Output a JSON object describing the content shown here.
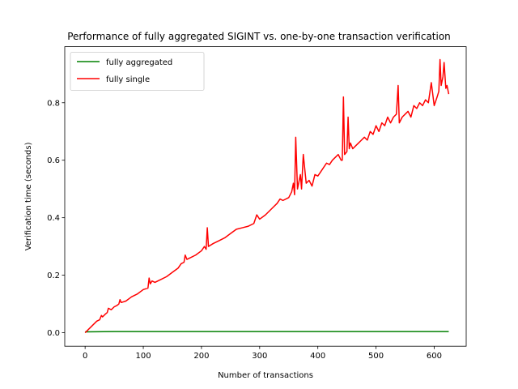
{
  "chart_data": {
    "type": "line",
    "title": "Performance of fully aggregated SIGINT vs. one-by-one transaction verification",
    "xlabel": "Number of transactions",
    "ylabel": "Verification time (seconds)",
    "xlim": [
      -35,
      655
    ],
    "ylim": [
      -0.047,
      0.995
    ],
    "xticks": [
      0,
      100,
      200,
      300,
      400,
      500,
      600
    ],
    "yticks": [
      0.0,
      0.2,
      0.4,
      0.6,
      0.8
    ],
    "ytick_labels": [
      "0.0",
      "0.2",
      "0.4",
      "0.6",
      "0.8"
    ],
    "grid": false,
    "legend_position": "upper-left",
    "series": [
      {
        "name": "fully aggregated",
        "color": "#008000",
        "x": [
          0,
          50,
          100,
          150,
          200,
          250,
          300,
          350,
          400,
          450,
          500,
          550,
          600,
          625
        ],
        "y": [
          0.003,
          0.004,
          0.004,
          0.004,
          0.004,
          0.004,
          0.004,
          0.004,
          0.004,
          0.004,
          0.004,
          0.004,
          0.004,
          0.004
        ]
      },
      {
        "name": "fully single",
        "color": "#ff0000",
        "x": [
          0,
          10,
          20,
          25,
          28,
          30,
          35,
          38,
          40,
          45,
          50,
          55,
          58,
          60,
          62,
          70,
          80,
          90,
          100,
          108,
          110,
          112,
          115,
          120,
          130,
          140,
          150,
          160,
          165,
          170,
          172,
          175,
          180,
          190,
          200,
          205,
          208,
          210,
          212,
          220,
          230,
          240,
          250,
          260,
          270,
          280,
          290,
          295,
          300,
          310,
          320,
          330,
          335,
          340,
          350,
          355,
          358,
          360,
          362,
          365,
          368,
          370,
          372,
          375,
          380,
          385,
          390,
          395,
          400,
          405,
          410,
          415,
          420,
          425,
          430,
          435,
          440,
          442,
          444,
          446,
          450,
          452,
          454,
          456,
          460,
          465,
          470,
          475,
          480,
          485,
          490,
          495,
          500,
          505,
          510,
          515,
          520,
          525,
          530,
          535,
          538,
          540,
          545,
          550,
          555,
          560,
          565,
          570,
          575,
          580,
          585,
          590,
          595,
          600,
          605,
          608,
          610,
          612,
          615,
          617,
          620,
          622,
          625
        ],
        "y": [
          0.0,
          0.02,
          0.04,
          0.045,
          0.06,
          0.055,
          0.065,
          0.07,
          0.085,
          0.08,
          0.09,
          0.095,
          0.1,
          0.115,
          0.105,
          0.11,
          0.125,
          0.135,
          0.15,
          0.155,
          0.19,
          0.17,
          0.18,
          0.175,
          0.185,
          0.195,
          0.21,
          0.225,
          0.24,
          0.245,
          0.27,
          0.255,
          0.26,
          0.27,
          0.285,
          0.3,
          0.29,
          0.365,
          0.3,
          0.31,
          0.32,
          0.33,
          0.345,
          0.36,
          0.365,
          0.37,
          0.38,
          0.41,
          0.395,
          0.41,
          0.43,
          0.45,
          0.465,
          0.46,
          0.47,
          0.49,
          0.52,
          0.48,
          0.68,
          0.5,
          0.53,
          0.55,
          0.5,
          0.62,
          0.52,
          0.53,
          0.51,
          0.55,
          0.545,
          0.56,
          0.575,
          0.59,
          0.585,
          0.6,
          0.61,
          0.62,
          0.6,
          0.6,
          0.82,
          0.62,
          0.63,
          0.75,
          0.64,
          0.66,
          0.64,
          0.65,
          0.66,
          0.67,
          0.68,
          0.67,
          0.7,
          0.69,
          0.72,
          0.7,
          0.73,
          0.72,
          0.75,
          0.73,
          0.75,
          0.76,
          0.86,
          0.73,
          0.75,
          0.76,
          0.77,
          0.75,
          0.79,
          0.78,
          0.8,
          0.79,
          0.81,
          0.8,
          0.87,
          0.79,
          0.82,
          0.84,
          0.95,
          0.86,
          0.89,
          0.94,
          0.85,
          0.86,
          0.83
        ]
      }
    ]
  }
}
